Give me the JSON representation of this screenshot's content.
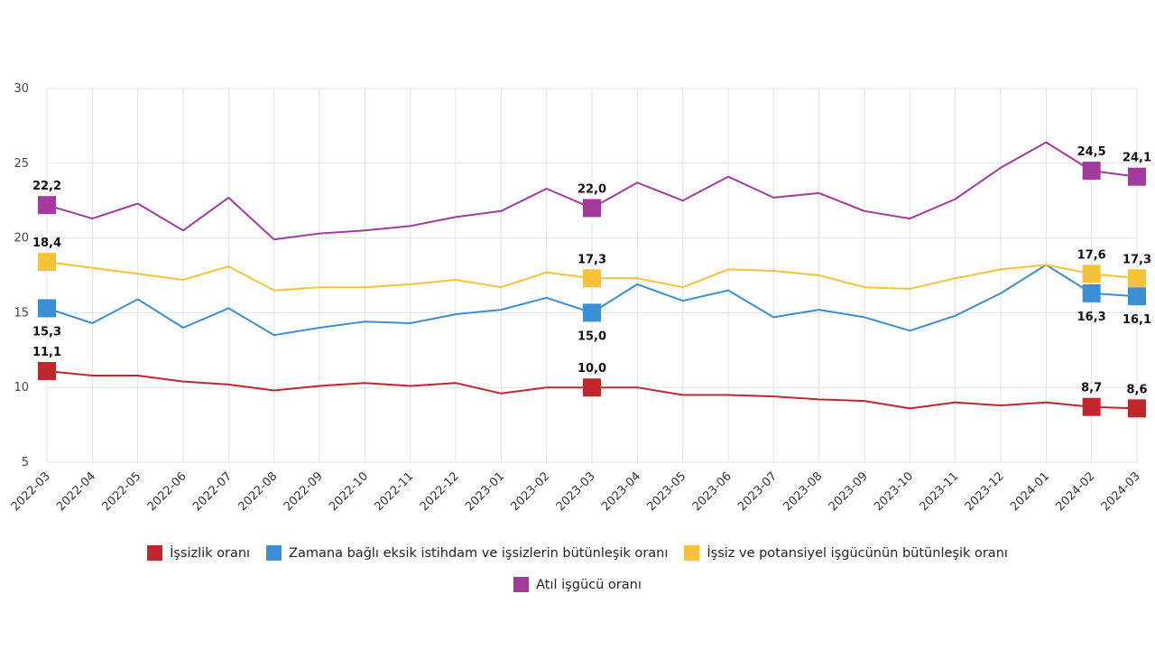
{
  "chart_data": {
    "type": "line",
    "title": "",
    "xlabel": "",
    "ylabel": "",
    "ylim": [
      5,
      30
    ],
    "yticks": [
      "5",
      "10",
      "15",
      "20",
      "25",
      "30"
    ],
    "grid": true,
    "legend_position": "bottom",
    "categories": [
      "2022-03",
      "2022-04",
      "2022-05",
      "2022-06",
      "2022-07",
      "2022-08",
      "2022-09",
      "2022-10",
      "2022-11",
      "2022-12",
      "2023-01",
      "2023-02",
      "2023-03",
      "2023-04",
      "2023-05",
      "2023-06",
      "2023-07",
      "2023-08",
      "2023-09",
      "2023-10",
      "2023-11",
      "2023-12",
      "2024-01",
      "2024-02",
      "2024-03"
    ],
    "highlight_indices": [
      0,
      12,
      23,
      24
    ],
    "series": [
      {
        "name": "İşsizlik oranı",
        "color": "#c0272d",
        "values": [
          11.1,
          10.8,
          10.8,
          10.4,
          10.2,
          9.8,
          10.1,
          10.3,
          10.1,
          10.3,
          9.6,
          10.0,
          10.0,
          10.0,
          9.5,
          9.5,
          9.4,
          9.2,
          9.1,
          8.6,
          9.0,
          8.8,
          9.0,
          8.7,
          8.6
        ],
        "labels": [
          {
            "index": 0,
            "text": "11,1",
            "pos": "above"
          },
          {
            "index": 12,
            "text": "10,0",
            "pos": "above"
          },
          {
            "index": 23,
            "text": "8,7",
            "pos": "above"
          },
          {
            "index": 24,
            "text": "8,6",
            "pos": "above"
          }
        ]
      },
      {
        "name": "Zamana bağlı eksik istihdam ve işsizlerin bütünleşik oranı",
        "color": "#3a8fd4",
        "values": [
          15.3,
          14.3,
          15.9,
          14.0,
          15.3,
          13.5,
          14.0,
          14.4,
          14.3,
          14.9,
          15.2,
          16.0,
          15.0,
          16.9,
          15.8,
          16.5,
          14.7,
          15.2,
          14.7,
          13.8,
          14.8,
          16.3,
          18.2,
          16.3,
          16.1
        ],
        "labels": [
          {
            "index": 0,
            "text": "15,3",
            "pos": "below"
          },
          {
            "index": 12,
            "text": "15,0",
            "pos": "below"
          },
          {
            "index": 23,
            "text": "16,3",
            "pos": "below"
          },
          {
            "index": 24,
            "text": "16,1",
            "pos": "below"
          }
        ]
      },
      {
        "name": "İşsiz ve potansiyel işgücünün bütünleşik oranı",
        "color": "#f5c23a",
        "values": [
          18.4,
          18.0,
          17.6,
          17.2,
          18.1,
          16.5,
          16.7,
          16.7,
          16.9,
          17.2,
          16.7,
          17.7,
          17.3,
          17.3,
          16.7,
          17.9,
          17.8,
          17.5,
          16.7,
          16.6,
          17.3,
          17.9,
          18.2,
          17.6,
          17.3
        ],
        "labels": [
          {
            "index": 0,
            "text": "18,4",
            "pos": "above"
          },
          {
            "index": 12,
            "text": "17,3",
            "pos": "above"
          },
          {
            "index": 23,
            "text": "17,6",
            "pos": "above"
          },
          {
            "index": 24,
            "text": "17,3",
            "pos": "above"
          }
        ]
      },
      {
        "name": "Atıl işgücü oranı",
        "color": "#a53a9e",
        "values": [
          22.2,
          21.3,
          22.3,
          20.5,
          22.7,
          19.9,
          20.3,
          20.5,
          20.8,
          21.4,
          21.8,
          23.3,
          22.0,
          23.7,
          22.5,
          24.1,
          22.7,
          23.0,
          21.8,
          21.3,
          22.6,
          24.7,
          26.4,
          24.5,
          24.1
        ],
        "labels": [
          {
            "index": 0,
            "text": "22,2",
            "pos": "above"
          },
          {
            "index": 12,
            "text": "22,0",
            "pos": "above"
          },
          {
            "index": 23,
            "text": "24,5",
            "pos": "above"
          },
          {
            "index": 24,
            "text": "24,1",
            "pos": "above"
          }
        ]
      }
    ]
  }
}
